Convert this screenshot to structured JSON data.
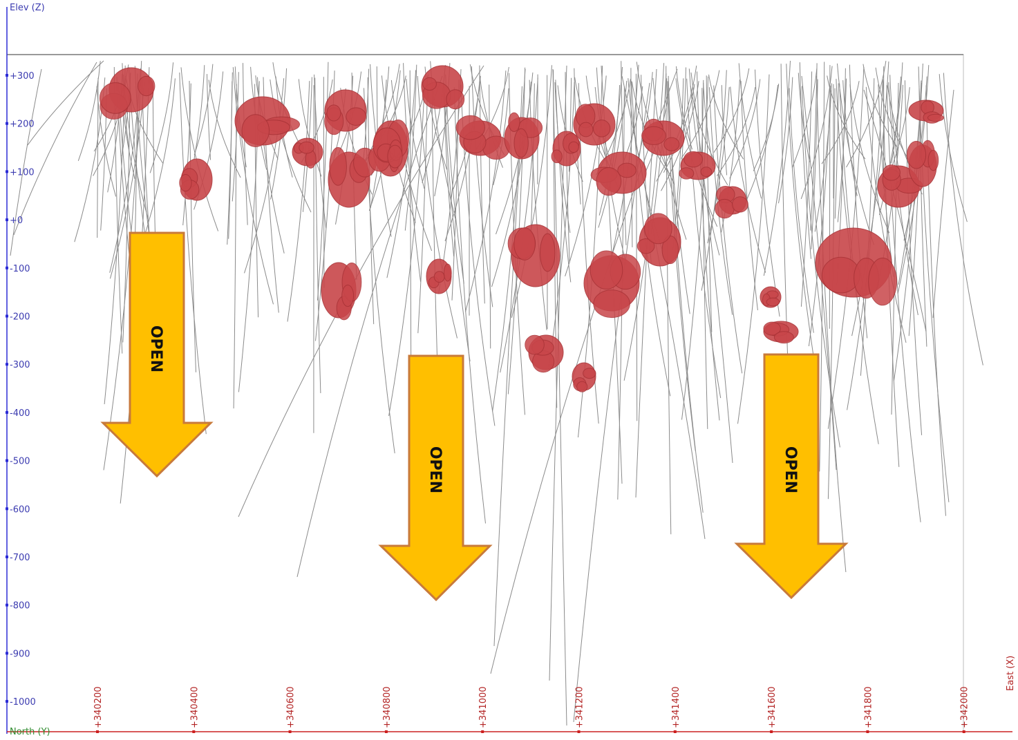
{
  "axes": {
    "z_label": "Elev (Z)",
    "x_label": "East (X)",
    "y_label": "North (Y)",
    "z_ticks": [
      "+300",
      "+200",
      "+100",
      "+0",
      "-100",
      "-200",
      "-300",
      "-400",
      "-500",
      "-600",
      "-700",
      "-800",
      "-900",
      "-1000"
    ],
    "x_ticks": [
      "+340200",
      "+340400",
      "+340600",
      "+340800",
      "+341000",
      "+341200",
      "+341400",
      "+341600",
      "+341800",
      "+342000"
    ]
  },
  "arrows": [
    {
      "label": "OPEN"
    },
    {
      "label": "OPEN"
    },
    {
      "label": "OPEN"
    }
  ],
  "colors": {
    "z_axis": "#2b2bd6",
    "x_axis": "#cc2020",
    "y_axis": "#2e8b2e",
    "drill_trace": "#8a8a8a",
    "mineralization": "#c8464a",
    "arrow_fill": "#ffbf00",
    "arrow_stroke": "#c87a3a"
  }
}
